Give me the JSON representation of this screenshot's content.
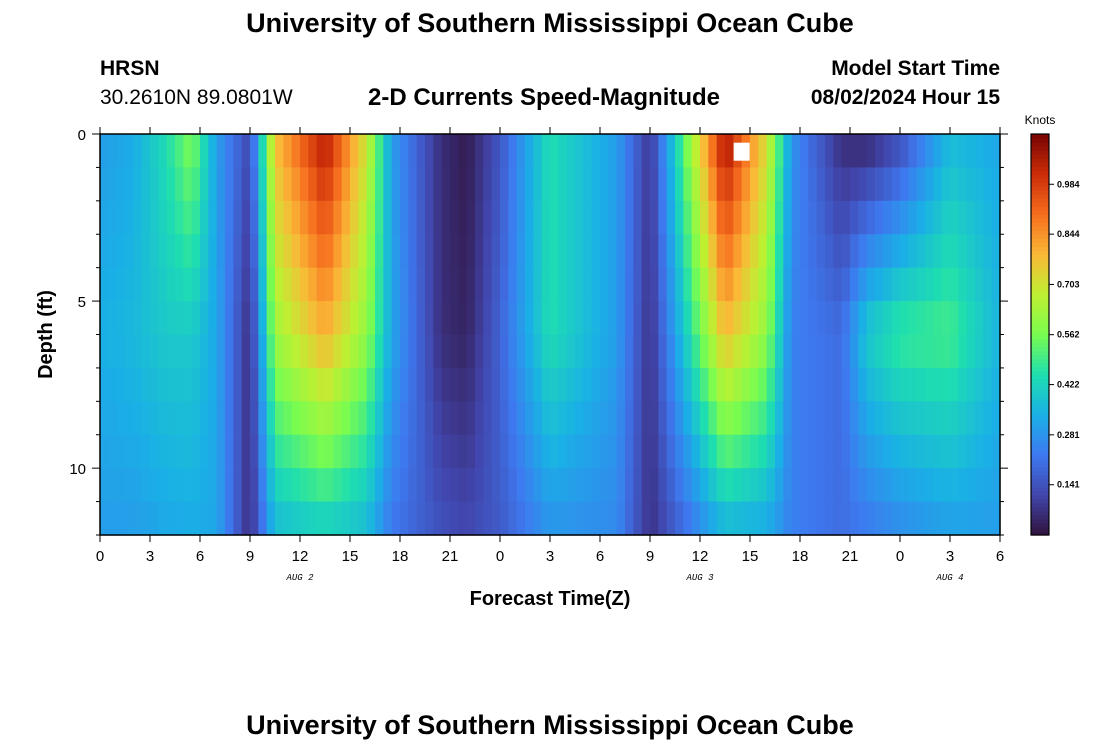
{
  "header": {
    "title": "University of Southern Mississippi Ocean Cube",
    "station": "HRSN",
    "coordinates": "30.2610N  89.0801W",
    "subtitle": "2-D Currents Speed-Magnitude",
    "model_start_label": "Model Start Time",
    "model_start_value": "08/02/2024 Hour 15"
  },
  "footer": {
    "title": "University of Southern Mississippi Ocean Cube"
  },
  "chart_data": {
    "type": "heatmap",
    "title": "2-D Currents Speed-Magnitude",
    "xlabel": "Forecast Time(Z)",
    "ylabel": "Depth (ft)",
    "x_range_hours": [
      0,
      54
    ],
    "y_range_ft": [
      0,
      12
    ],
    "x_ticks": [
      "0",
      "3",
      "6",
      "9",
      "12",
      "15",
      "18",
      "21",
      "0",
      "3",
      "6",
      "9",
      "12",
      "15",
      "18",
      "21",
      "0",
      "3",
      "6"
    ],
    "y_ticks": [
      "0",
      "5",
      "10"
    ],
    "date_labels": [
      {
        "label": "AUG 2",
        "hour": 12
      },
      {
        "label": "AUG 3",
        "hour": 36
      },
      {
        "label": "AUG 4",
        "hour": 51
      }
    ],
    "colorbar": {
      "title": "Knots",
      "min": 0.0,
      "max": 1.125,
      "ticks": [
        "0.984",
        "0.844",
        "0.703",
        "0.562",
        "0.422",
        "0.281",
        "0.141"
      ],
      "tick_values": [
        0.984,
        0.844,
        0.703,
        0.562,
        0.422,
        0.281,
        0.141
      ]
    },
    "depth_rows_ft": [
      0.5,
      1.5,
      2.5,
      3.5,
      4.5,
      5.5,
      6.5,
      7.5,
      8.5,
      9.5,
      10.5,
      11.5
    ],
    "speed_profile_time_hours": [
      0,
      2,
      4,
      5.5,
      7,
      9,
      10.5,
      13.5,
      16,
      17.5,
      20.5,
      22,
      24,
      27,
      31,
      33,
      37.5,
      40,
      41.5,
      44.5,
      46,
      48,
      51,
      54
    ],
    "speed_profile_surface_knots": [
      0.3,
      0.33,
      0.45,
      0.58,
      0.3,
      0.12,
      0.78,
      1.06,
      0.7,
      0.3,
      0.06,
      0.02,
      0.15,
      0.45,
      0.3,
      0.08,
      1.08,
      0.72,
      0.28,
      0.06,
      0.04,
      0.12,
      0.36,
      0.32
    ],
    "speed_profile_mid_knots": [
      0.34,
      0.36,
      0.4,
      0.4,
      0.32,
      0.06,
      0.62,
      0.8,
      0.6,
      0.32,
      0.06,
      0.04,
      0.18,
      0.45,
      0.3,
      0.07,
      0.78,
      0.6,
      0.24,
      0.2,
      0.4,
      0.48,
      0.5,
      0.35
    ],
    "speed_profile_bottom_knots": [
      0.3,
      0.3,
      0.32,
      0.33,
      0.32,
      0.06,
      0.36,
      0.4,
      0.36,
      0.22,
      0.14,
      0.12,
      0.16,
      0.28,
      0.26,
      0.07,
      0.34,
      0.32,
      0.24,
      0.2,
      0.22,
      0.26,
      0.3,
      0.3
    ],
    "missing_cells": [
      {
        "hour": 38.5,
        "depth_ft": 0.5
      }
    ]
  }
}
